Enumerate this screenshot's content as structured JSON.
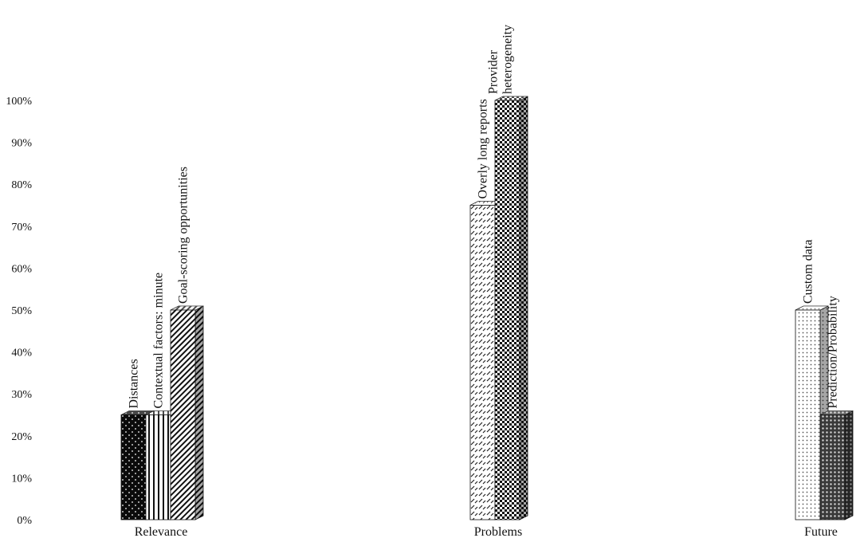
{
  "chart_data": {
    "type": "bar",
    "style": "3d-column",
    "ylim": [
      0,
      100
    ],
    "yticks": [
      "0%",
      "10%",
      "20%",
      "30%",
      "40%",
      "50%",
      "60%",
      "70%",
      "80%",
      "90%",
      "100%"
    ],
    "grid": false,
    "legend": "none",
    "groups": [
      {
        "category": "Relevance",
        "bars": [
          {
            "label": [
              "Distances"
            ],
            "value": 25,
            "pattern": "dots-dark"
          },
          {
            "label": [
              "Contextual factors: minute"
            ],
            "value": 25,
            "pattern": "vertical-lines"
          },
          {
            "label": [
              "Goal-scoring opportunities"
            ],
            "value": 50,
            "pattern": "diagonal-lines"
          }
        ]
      },
      {
        "category": "Problems",
        "bars": [
          {
            "label": [
              "Overly long reports"
            ],
            "value": 75,
            "pattern": "dashes"
          },
          {
            "label": [
              "Provider",
              "heterogeneity"
            ],
            "value": 100,
            "pattern": "checker"
          }
        ]
      },
      {
        "category": "Future",
        "bars": [
          {
            "label": [
              "Custom data"
            ],
            "value": 50,
            "pattern": "dots-light"
          },
          {
            "label": [
              "Prediction/Probability"
            ],
            "value": 25,
            "pattern": "grid-dark"
          }
        ]
      }
    ],
    "colors": {
      "ink": "#111111",
      "background": "#ffffff"
    }
  }
}
